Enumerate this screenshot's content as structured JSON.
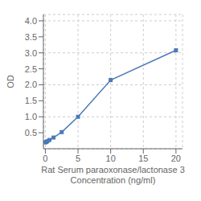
{
  "chart_data": {
    "type": "line",
    "xlabel": "Rat Serum paraoxonase/lactonase 3\nConcentration (ng/ml)",
    "ylabel": "OD",
    "x": [
      0,
      0.156,
      0.313,
      0.625,
      1.25,
      2.5,
      5,
      10,
      20
    ],
    "values": [
      0.198,
      0.213,
      0.238,
      0.275,
      0.35,
      0.52,
      1.0,
      2.15,
      3.08
    ],
    "color": "#4a7ab5",
    "marker": "square",
    "xlim": [
      -0.3,
      21
    ],
    "ylim": [
      0,
      4.2
    ],
    "xticks": [
      0,
      5,
      10,
      15,
      20
    ],
    "yticks": [
      0.5,
      {
        "value": 1.0,
        "label": "1.0"
      },
      1.5,
      {
        "value": 2.0,
        "label": "2.0"
      },
      2.5,
      {
        "value": 3.0,
        "label": "3.0"
      },
      3.5,
      {
        "value": 4.0,
        "label": "4.0"
      }
    ],
    "grid": true
  }
}
